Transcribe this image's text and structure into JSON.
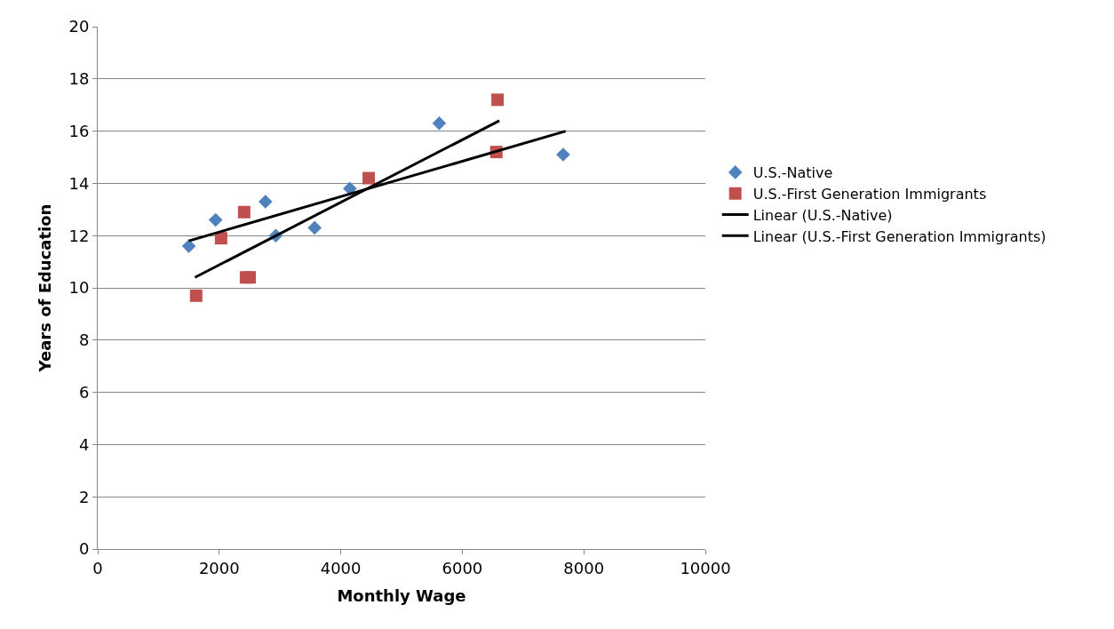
{
  "chart_data": {
    "type": "scatter",
    "xlabel": "Monthly Wage",
    "ylabel": "Years of Education",
    "xlim": [
      0,
      10000
    ],
    "xticks": [
      0,
      2000,
      4000,
      6000,
      8000,
      10000
    ],
    "ylim": [
      0,
      20
    ],
    "yticks": [
      0,
      2,
      4,
      6,
      8,
      10,
      12,
      14,
      16,
      18,
      20
    ],
    "grid": "y",
    "legend": "right",
    "series": [
      {
        "name": "U.S.-Native",
        "marker": "diamond",
        "color": "#4f81bd",
        "x": [
          1500,
          1940,
          2760,
          2930,
          3570,
          4150,
          5620,
          7660
        ],
        "values": [
          11.6,
          12.6,
          13.3,
          12.0,
          12.3,
          13.8,
          16.3,
          15.1
        ]
      },
      {
        "name": "U.S.-First Generation Immigrants",
        "marker": "square",
        "color": "#c0504d",
        "x": [
          1620,
          2030,
          2410,
          2440,
          2500,
          4460,
          6560,
          6580
        ],
        "values": [
          9.7,
          11.9,
          12.9,
          10.4,
          10.4,
          14.2,
          15.2,
          17.2
        ]
      },
      {
        "name": "Linear (U.S.-Native)",
        "type": "line",
        "marker": "none",
        "color": "#000000",
        "x": [
          1500,
          7700
        ],
        "values": [
          11.8,
          16.0
        ]
      },
      {
        "name": "Linear (U.S.-First Generation Immigrants)",
        "type": "line",
        "marker": "none",
        "color": "#000000",
        "x": [
          1600,
          6610
        ],
        "values": [
          10.4,
          16.4
        ]
      }
    ]
  }
}
